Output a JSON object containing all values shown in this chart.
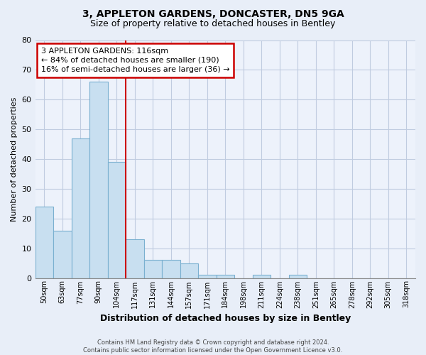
{
  "title": "3, APPLETON GARDENS, DONCASTER, DN5 9GA",
  "subtitle": "Size of property relative to detached houses in Bentley",
  "xlabel": "Distribution of detached houses by size in Bentley",
  "ylabel": "Number of detached properties",
  "footer_line1": "Contains HM Land Registry data © Crown copyright and database right 2024.",
  "footer_line2": "Contains public sector information licensed under the Open Government Licence v3.0.",
  "bin_labels": [
    "50sqm",
    "63sqm",
    "77sqm",
    "90sqm",
    "104sqm",
    "117sqm",
    "131sqm",
    "144sqm",
    "157sqm",
    "171sqm",
    "184sqm",
    "198sqm",
    "211sqm",
    "224sqm",
    "238sqm",
    "251sqm",
    "265sqm",
    "278sqm",
    "292sqm",
    "305sqm",
    "318sqm"
  ],
  "bar_heights": [
    24,
    16,
    47,
    66,
    39,
    13,
    6,
    6,
    5,
    1,
    1,
    0,
    1,
    0,
    1,
    0,
    0,
    0,
    0,
    0,
    0
  ],
  "bar_color": "#c8dff0",
  "bar_edge_color": "#7ab0d0",
  "vline_color": "#cc0000",
  "vline_x_index": 5,
  "annotation_title": "3 APPLETON GARDENS: 116sqm",
  "annotation_line1": "← 84% of detached houses are smaller (190)",
  "annotation_line2": "16% of semi-detached houses are larger (36) →",
  "annotation_box_facecolor": "white",
  "annotation_box_edgecolor": "#cc0000",
  "ylim": [
    0,
    80
  ],
  "yticks": [
    0,
    10,
    20,
    30,
    40,
    50,
    60,
    70,
    80
  ],
  "background_color": "#e8eef8",
  "plot_background": "#edf2fb",
  "grid_color": "#c0cce0",
  "title_fontsize": 10,
  "subtitle_fontsize": 9,
  "tick_fontsize": 7,
  "ylabel_fontsize": 8,
  "xlabel_fontsize": 9,
  "footer_fontsize": 6,
  "ann_fontsize": 8
}
